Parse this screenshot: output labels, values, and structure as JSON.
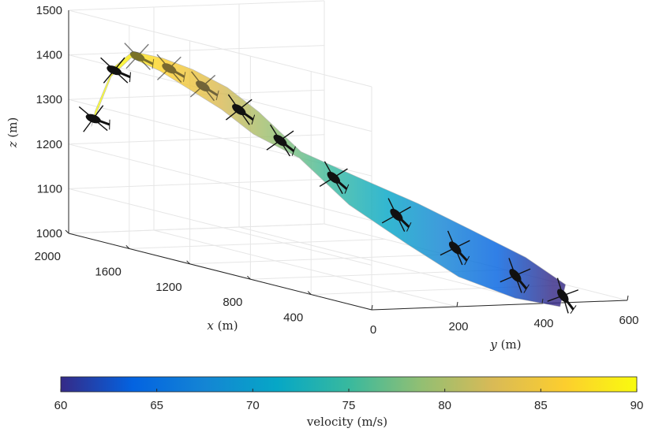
{
  "chart_data": {
    "type": "surface",
    "projection": "3d",
    "xlabel_var": "x",
    "xlabel_unit": " (m)",
    "ylabel_var": "y",
    "ylabel_unit": " (m)",
    "zlabel_var": "z",
    "zlabel_unit": " (m)",
    "xlim": [
      0,
      2000
    ],
    "ylim": [
      0,
      600
    ],
    "zlim": [
      1000,
      1500
    ],
    "x_ticks": [
      "2000",
      "1600",
      "1200",
      "800",
      "400"
    ],
    "y_ticks": [
      "0",
      "200",
      "400",
      "600"
    ],
    "z_ticks": [
      "1500",
      "1400",
      "1300",
      "1200",
      "1100",
      "1000"
    ],
    "grid": true,
    "colormap": "parula",
    "colorbar": {
      "label": "velocity (m/s)",
      "range": [
        60,
        90
      ],
      "ticks": [
        "60",
        "65",
        "70",
        "75",
        "80",
        "85",
        "90"
      ],
      "position": "bottom"
    },
    "trajectory": [
      {
        "x": 1950,
        "y": 40,
        "z": 1260,
        "velocity": 90
      },
      {
        "x": 1880,
        "y": 60,
        "z": 1370,
        "velocity": 86
      },
      {
        "x": 1750,
        "y": 60,
        "z": 1420,
        "velocity": 84
      },
      {
        "x": 1600,
        "y": 75,
        "z": 1410,
        "velocity": 82
      },
      {
        "x": 1450,
        "y": 90,
        "z": 1390,
        "velocity": 80
      },
      {
        "x": 1280,
        "y": 110,
        "z": 1360,
        "velocity": 77
      },
      {
        "x": 1100,
        "y": 120,
        "z": 1320,
        "velocity": 74
      },
      {
        "x": 950,
        "y": 170,
        "z": 1260,
        "velocity": 72
      },
      {
        "x": 800,
        "y": 240,
        "z": 1190,
        "velocity": 70
      },
      {
        "x": 600,
        "y": 310,
        "z": 1130,
        "velocity": 67
      },
      {
        "x": 400,
        "y": 360,
        "z": 1080,
        "velocity": 64
      },
      {
        "x": 200,
        "y": 420,
        "z": 1040,
        "velocity": 62
      },
      {
        "x": 60,
        "y": 470,
        "z": 1010,
        "velocity": 60
      }
    ],
    "helicopter_markers": 12
  },
  "colors": {
    "parula": [
      "#352a87",
      "#0363e1",
      "#1485d4",
      "#06a7c6",
      "#38b99e",
      "#92bf73",
      "#d9ba56",
      "#fcce2e",
      "#f9fb0e"
    ],
    "axis": "#262626",
    "grid": "#e6e6e6",
    "silhouette": "#111111"
  }
}
